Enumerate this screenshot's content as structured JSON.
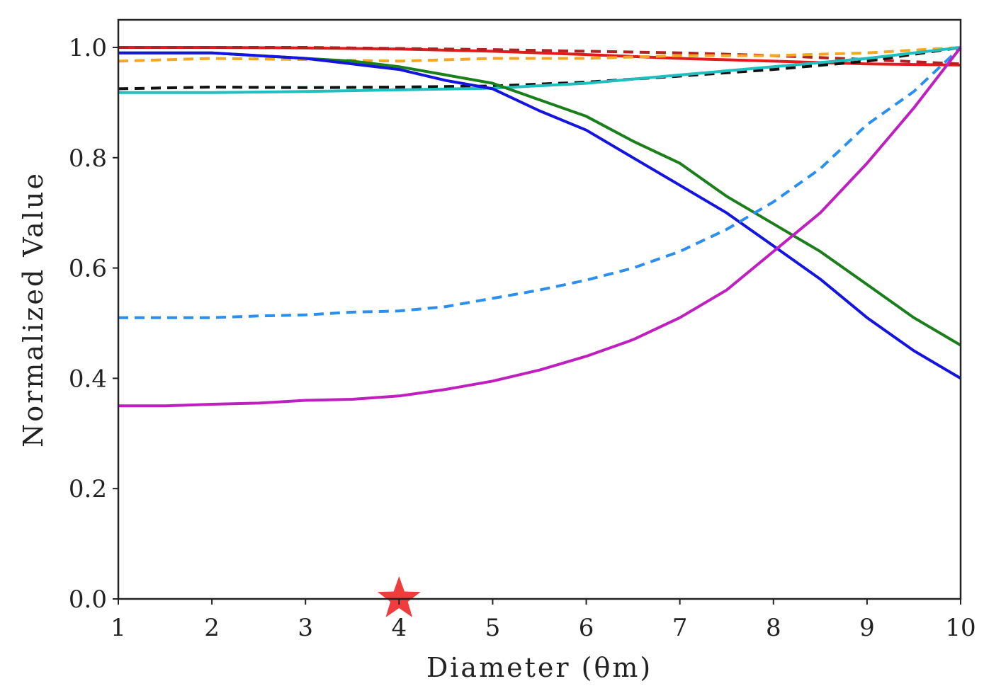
{
  "chart_data": {
    "type": "line",
    "title": "",
    "xlabel": "Diameter (θm)",
    "ylabel": "Normalized Value",
    "xlim": [
      1,
      10
    ],
    "ylim": [
      0,
      1.05
    ],
    "xticks": [
      "1",
      "2",
      "3",
      "4",
      "5",
      "6",
      "7",
      "8",
      "9",
      "10"
    ],
    "yticks": [
      "0.0",
      "0.2",
      "0.4",
      "0.6",
      "0.8",
      "1.0"
    ],
    "grid": false,
    "legend": "none",
    "marker": {
      "x": 4,
      "y": 0,
      "shape": "star",
      "color": "#f03c3c"
    },
    "series": [
      {
        "color": "#e41a1c",
        "dash": false,
        "x": [
          1,
          2,
          3,
          4,
          5,
          6,
          7,
          8,
          9,
          10
        ],
        "y": [
          1.0,
          1.0,
          0.999,
          0.997,
          0.993,
          0.987,
          0.98,
          0.975,
          0.97,
          0.968
        ]
      },
      {
        "color": "#b22222",
        "dash": true,
        "x": [
          1,
          2,
          3,
          4,
          5,
          6,
          7,
          8,
          9,
          10
        ],
        "y": [
          1.0,
          1.0,
          1.0,
          0.998,
          0.996,
          0.993,
          0.99,
          0.985,
          0.978,
          0.97
        ]
      },
      {
        "color": "#f5a623",
        "dash": true,
        "x": [
          1,
          2,
          3,
          4,
          5,
          6,
          7,
          8,
          9,
          10
        ],
        "y": [
          0.975,
          0.98,
          0.978,
          0.975,
          0.98,
          0.98,
          0.985,
          0.985,
          0.99,
          1.0
        ]
      },
      {
        "color": "#111111",
        "dash": true,
        "x": [
          1,
          2,
          3,
          4,
          5,
          6,
          7,
          8,
          9,
          10
        ],
        "y": [
          0.925,
          0.928,
          0.927,
          0.928,
          0.93,
          0.937,
          0.948,
          0.96,
          0.975,
          1.0
        ]
      },
      {
        "color": "#1fbfbf",
        "dash": false,
        "x": [
          1,
          2,
          3,
          4,
          5,
          6,
          7,
          8,
          9,
          10
        ],
        "y": [
          0.918,
          0.918,
          0.92,
          0.923,
          0.926,
          0.935,
          0.95,
          0.965,
          0.98,
          1.0
        ]
      },
      {
        "color": "#1a7f1a",
        "dash": false,
        "x": [
          1,
          1.5,
          2,
          2.5,
          3,
          3.5,
          4,
          4.5,
          5,
          5.5,
          6,
          6.5,
          7,
          7.5,
          8,
          8.5,
          9,
          9.5,
          10
        ],
        "y": [
          0.99,
          0.99,
          0.99,
          0.985,
          0.98,
          0.975,
          0.965,
          0.95,
          0.935,
          0.905,
          0.875,
          0.83,
          0.79,
          0.73,
          0.68,
          0.63,
          0.57,
          0.51,
          0.46
        ]
      },
      {
        "color": "#1414e0",
        "dash": false,
        "x": [
          1,
          1.5,
          2,
          2.5,
          3,
          3.5,
          4,
          4.5,
          5,
          5.5,
          6,
          6.5,
          7,
          7.5,
          8,
          8.5,
          9,
          9.5,
          10
        ],
        "y": [
          0.99,
          0.99,
          0.99,
          0.985,
          0.98,
          0.97,
          0.96,
          0.94,
          0.925,
          0.885,
          0.85,
          0.8,
          0.75,
          0.7,
          0.64,
          0.58,
          0.51,
          0.45,
          0.4
        ]
      },
      {
        "color": "#2a8ff0",
        "dash": true,
        "x": [
          1,
          1.5,
          2,
          2.5,
          3,
          3.5,
          4,
          4.5,
          5,
          5.5,
          6,
          6.5,
          7,
          7.5,
          8,
          8.5,
          9,
          9.5,
          10
        ],
        "y": [
          0.51,
          0.51,
          0.51,
          0.513,
          0.515,
          0.52,
          0.522,
          0.53,
          0.545,
          0.56,
          0.578,
          0.6,
          0.63,
          0.67,
          0.72,
          0.78,
          0.86,
          0.92,
          1.0
        ]
      },
      {
        "color": "#bf1fbf",
        "dash": false,
        "x": [
          1,
          1.5,
          2,
          2.5,
          3,
          3.5,
          4,
          4.5,
          5,
          5.5,
          6,
          6.5,
          7,
          7.5,
          8,
          8.5,
          9,
          9.5,
          10
        ],
        "y": [
          0.35,
          0.35,
          0.353,
          0.355,
          0.36,
          0.362,
          0.368,
          0.38,
          0.395,
          0.415,
          0.44,
          0.47,
          0.51,
          0.56,
          0.63,
          0.7,
          0.79,
          0.89,
          1.0
        ]
      }
    ]
  }
}
